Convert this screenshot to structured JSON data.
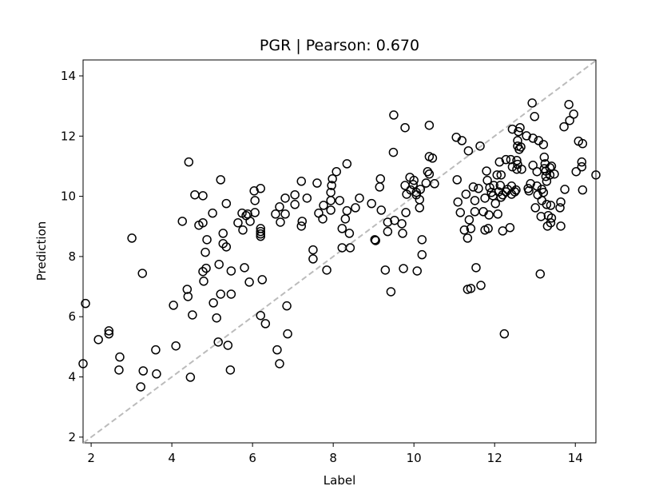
{
  "chart_data": {
    "type": "scatter",
    "title": "PGR  |  Pearson: 0.670",
    "x_label": "Label",
    "y_label": "Prediction",
    "xlim": [
      1.8,
      14.51
    ],
    "ylim": [
      1.81,
      14.53
    ],
    "xticks": [
      2,
      4,
      6,
      8,
      10,
      12,
      14
    ],
    "yticks": [
      2,
      4,
      6,
      8,
      10,
      12,
      14
    ],
    "marker_edge_color": "#000000",
    "reference_line_color": "#bbbbbb",
    "x": [
      1.8,
      1.86,
      2.18,
      2.44,
      2.44,
      2.71,
      2.69,
      3.01,
      3.27,
      3.29,
      3.23,
      3.6,
      3.62,
      4.04,
      4.1,
      4.26,
      4.42,
      4.38,
      4.4,
      4.46,
      4.51,
      4.57,
      4.67,
      4.77,
      4.77,
      4.77,
      4.79,
      4.87,
      4.83,
      4.85,
      5.01,
      5.03,
      5.11,
      5.15,
      5.17,
      5.21,
      5.21,
      5.27,
      5.27,
      5.35,
      5.35,
      5.39,
      5.45,
      5.47,
      5.47,
      5.64,
      5.74,
      5.76,
      5.8,
      5.84,
      5.88,
      5.92,
      5.94,
      6.04,
      6.06,
      6.06,
      6.2,
      6.2,
      6.2,
      6.2,
      6.2,
      6.2,
      6.24,
      6.32,
      6.57,
      6.61,
      6.67,
      6.67,
      6.69,
      6.81,
      6.81,
      6.85,
      6.87,
      7.05,
      7.05,
      7.21,
      7.23,
      7.21,
      7.35,
      7.5,
      7.5,
      7.6,
      7.64,
      7.74,
      7.76,
      7.84,
      7.94,
      7.94,
      7.96,
      7.98,
      7.94,
      8.08,
      8.16,
      8.22,
      8.22,
      8.3,
      8.34,
      8.34,
      8.4,
      8.42,
      8.55,
      8.65,
      8.95,
      9.03,
      9.05,
      9.17,
      9.15,
      9.19,
      9.29,
      9.35,
      9.35,
      9.43,
      9.49,
      9.5,
      9.52,
      9.7,
      9.72,
      9.74,
      9.78,
      9.78,
      9.82,
      9.8,
      9.9,
      9.92,
      9.98,
      10.0,
      10.06,
      10.06,
      10.08,
      10.14,
      10.14,
      10.16,
      10.2,
      10.2,
      10.3,
      10.34,
      10.38,
      10.38,
      10.38,
      10.46,
      10.51,
      11.05,
      11.09,
      11.07,
      11.15,
      11.19,
      11.25,
      11.29,
      11.33,
      11.35,
      11.33,
      11.37,
      11.41,
      11.41,
      11.47,
      11.51,
      11.51,
      11.54,
      11.6,
      11.64,
      11.66,
      11.72,
      11.76,
      11.76,
      11.8,
      11.82,
      11.84,
      11.86,
      11.88,
      11.92,
      11.96,
      11.98,
      12.02,
      12.06,
      12.08,
      12.1,
      12.12,
      12.14,
      12.16,
      12.16,
      12.2,
      12.2,
      12.24,
      12.28,
      12.28,
      12.32,
      12.38,
      12.4,
      12.42,
      12.42,
      12.44,
      12.44,
      12.5,
      12.53,
      12.55,
      12.55,
      12.57,
      12.57,
      12.59,
      12.61,
      12.57,
      12.65,
      12.63,
      12.67,
      12.79,
      12.83,
      12.85,
      12.89,
      12.93,
      12.95,
      12.99,
      12.95,
      13.01,
      13.05,
      13.07,
      13.05,
      13.09,
      13.13,
      13.15,
      13.17,
      13.17,
      13.21,
      13.21,
      13.23,
      13.23,
      13.25,
      13.27,
      13.27,
      13.29,
      13.29,
      13.31,
      13.33,
      13.37,
      13.37,
      13.39,
      13.39,
      13.41,
      13.41,
      13.48,
      13.62,
      13.64,
      13.64,
      13.72,
      13.74,
      13.84,
      13.86,
      13.96,
      14.02,
      14.08,
      14.18,
      14.16,
      14.16,
      14.18,
      14.51
    ],
    "values": [
      4.44,
      6.44,
      5.24,
      5.43,
      5.53,
      4.66,
      4.23,
      8.61,
      7.44,
      4.2,
      3.67,
      4.9,
      4.1,
      6.38,
      5.03,
      9.17,
      11.14,
      6.91,
      6.67,
      3.99,
      6.06,
      10.05,
      9.04,
      10.02,
      9.12,
      7.5,
      7.18,
      8.56,
      8.14,
      7.61,
      9.44,
      6.46,
      5.96,
      5.16,
      7.74,
      10.55,
      6.75,
      8.77,
      8.43,
      8.32,
      9.76,
      5.05,
      4.23,
      7.52,
      6.75,
      9.12,
      9.44,
      8.88,
      7.63,
      9.36,
      9.41,
      7.15,
      9.17,
      10.18,
      9.46,
      9.86,
      10.26,
      8.93,
      8.83,
      8.67,
      8.75,
      6.04,
      7.23,
      5.77,
      9.41,
      4.9,
      4.44,
      9.65,
      9.14,
      9.94,
      9.41,
      6.36,
      5.43,
      9.73,
      10.05,
      10.5,
      9.17,
      9.01,
      9.94,
      8.22,
      7.92,
      10.44,
      9.44,
      9.25,
      9.7,
      7.55,
      10.13,
      9.54,
      10.36,
      10.58,
      9.86,
      10.82,
      9.86,
      8.93,
      8.29,
      9.25,
      9.52,
      11.08,
      8.77,
      8.29,
      9.62,
      9.94,
      9.76,
      8.56,
      8.53,
      10.58,
      10.31,
      9.54,
      7.55,
      9.14,
      8.83,
      6.83,
      11.46,
      12.7,
      9.2,
      9.09,
      8.77,
      7.6,
      10.36,
      12.28,
      10.07,
      9.46,
      10.63,
      10.21,
      10.39,
      10.53,
      10.13,
      10.05,
      7.52,
      9.89,
      9.62,
      10.23,
      8.56,
      8.06,
      10.44,
      10.82,
      10.74,
      12.36,
      11.32,
      11.27,
      10.42,
      11.96,
      9.81,
      10.55,
      9.46,
      11.85,
      8.88,
      10.07,
      8.61,
      11.51,
      6.91,
      9.22,
      8.93,
      6.94,
      10.31,
      9.49,
      9.86,
      7.63,
      10.26,
      11.67,
      7.04,
      9.49,
      9.94,
      8.88,
      10.84,
      10.53,
      8.93,
      9.38,
      10.29,
      10.13,
      10.02,
      10.36,
      9.76,
      10.71,
      9.41,
      10.15,
      11.14,
      10.36,
      10.71,
      9.97,
      8.85,
      10.05,
      5.43,
      11.22,
      10.15,
      10.23,
      8.96,
      11.22,
      10.07,
      10.34,
      12.23,
      10.98,
      10.15,
      10.21,
      11.19,
      10.9,
      11.67,
      11.85,
      12.15,
      11.56,
      11.06,
      11.64,
      12.28,
      10.9,
      12.01,
      10.26,
      10.18,
      10.42,
      13.1,
      11.03,
      12.65,
      11.93,
      9.62,
      10.34,
      10.05,
      10.82,
      11.85,
      7.42,
      9.33,
      9.86,
      10.23,
      10.13,
      11.72,
      11.3,
      10.92,
      11.08,
      10.84,
      10.66,
      10.5,
      9.73,
      9.01,
      9.36,
      10.95,
      10.71,
      9.12,
      9.7,
      11.0,
      9.28,
      10.74,
      9.62,
      9.81,
      9.01,
      12.31,
      10.23,
      13.05,
      12.52,
      12.73,
      10.82,
      11.83,
      11.75,
      11.14,
      10.98,
      10.21,
      10.71
    ]
  }
}
